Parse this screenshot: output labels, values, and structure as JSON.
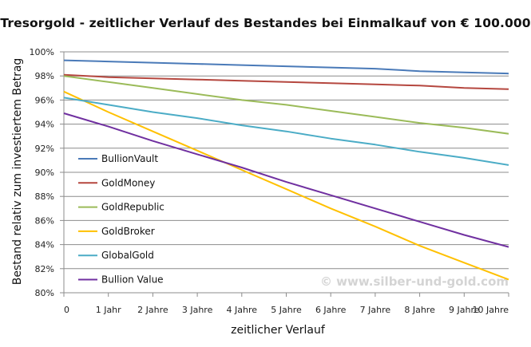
{
  "chart_data": {
    "type": "line",
    "title": "Tresorgold - zeitlicher Verlauf des Bestandes bei Einmalkauf von € 100.000",
    "xlabel": "zeitlicher Verlauf",
    "ylabel": "Bestand relativ zum investiertem Betrag",
    "categories": [
      "0",
      "1 Jahr",
      "2 Jahre",
      "3 Jahre",
      "4 Jahre",
      "5 Jahre",
      "6 Jahre",
      "7 Jahre",
      "8 Jahre",
      "9 Jahre",
      "10 Jahre"
    ],
    "y_ticks": [
      "100%",
      "98%",
      "96%",
      "94%",
      "92%",
      "90%",
      "88%",
      "86%",
      "84%",
      "82%",
      "80%"
    ],
    "ylim": [
      80,
      100
    ],
    "grid": true,
    "legend_position": "left",
    "watermark": "© www.silber-und-gold.com",
    "series": [
      {
        "name": "BullionVault",
        "color": "#4a7ab8",
        "values": [
          99.3,
          99.2,
          99.1,
          99.0,
          98.9,
          98.8,
          98.7,
          98.6,
          98.4,
          98.3,
          98.2
        ]
      },
      {
        "name": "GoldMoney",
        "color": "#b5473f",
        "values": [
          98.1,
          97.9,
          97.8,
          97.7,
          97.6,
          97.5,
          97.4,
          97.3,
          97.2,
          97.0,
          96.9
        ]
      },
      {
        "name": "GoldRepublic",
        "color": "#9bbb59",
        "values": [
          98.0,
          97.5,
          97.0,
          96.5,
          96.0,
          95.6,
          95.1,
          94.6,
          94.1,
          93.7,
          93.2
        ]
      },
      {
        "name": "GoldBroker",
        "color": "#ffc000",
        "values": [
          96.7,
          95.0,
          93.4,
          91.8,
          90.2,
          88.6,
          87.0,
          85.5,
          83.9,
          82.5,
          81.1
        ]
      },
      {
        "name": "GlobalGold",
        "color": "#4bacc6",
        "values": [
          96.2,
          95.6,
          95.0,
          94.5,
          93.9,
          93.4,
          92.8,
          92.3,
          91.7,
          91.2,
          90.6
        ]
      },
      {
        "name": "Bullion Value",
        "color": "#7030a0",
        "values": [
          94.9,
          93.8,
          92.6,
          91.5,
          90.4,
          89.2,
          88.1,
          87.0,
          85.9,
          84.8,
          83.8
        ]
      }
    ]
  }
}
